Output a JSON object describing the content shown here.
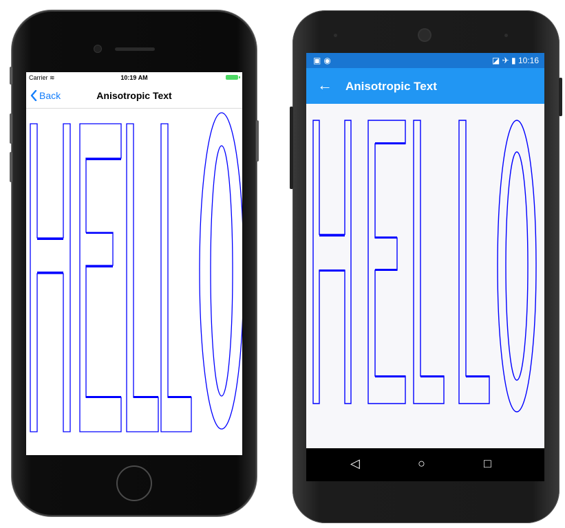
{
  "ios": {
    "status": {
      "carrier": "Carrier",
      "time": "10:19 AM"
    },
    "nav": {
      "back_label": "Back",
      "title": "Anisotropic Text"
    }
  },
  "android": {
    "status": {
      "time": "10:16"
    },
    "appbar": {
      "title": "Anisotropic Text"
    }
  },
  "hello_text": "HELLO",
  "colors": {
    "text_stroke": "#0000ff",
    "ios_tint": "#147efb",
    "android_appbar": "#2196f3",
    "android_statusbar": "#1976d2"
  }
}
